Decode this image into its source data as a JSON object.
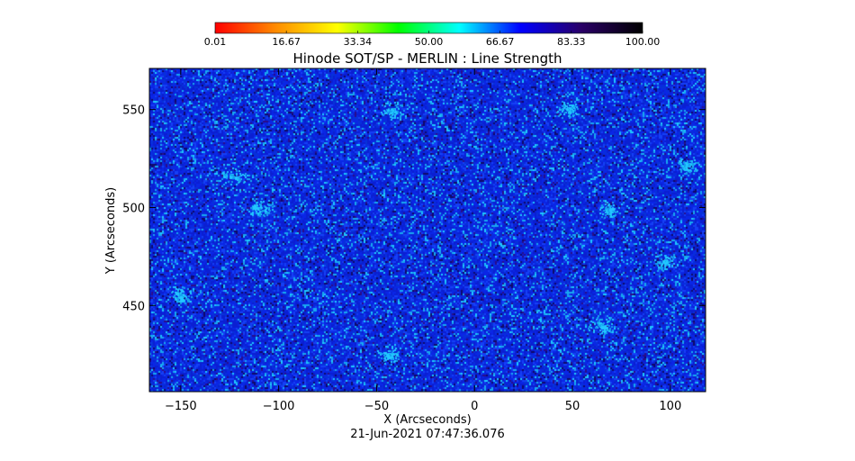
{
  "chart_data": {
    "type": "heatmap",
    "title": "Hinode SOT/SP - MERLIN : Line Strength",
    "subtitle": "21-Jun-2021 07:47:36.076",
    "xlabel": "X (Arcseconds)",
    "ylabel": "Y (Arcseconds)",
    "xlim": [
      -166,
      118
    ],
    "ylim": [
      406,
      571
    ],
    "x_ticks": [
      -150,
      -100,
      -50,
      0,
      50,
      100
    ],
    "x_tick_labels": [
      "−150",
      "−100",
      "−50",
      "0",
      "50",
      "100"
    ],
    "y_ticks": [
      450,
      500,
      550
    ],
    "y_tick_labels": [
      "450",
      "500",
      "550"
    ],
    "colorbar": {
      "min": 0.01,
      "max": 100.0,
      "tick_values": [
        0.01,
        16.67,
        33.34,
        50.0,
        66.67,
        83.33,
        100.0
      ],
      "tick_labels": [
        "0.01",
        "16.67",
        "33.34",
        "50.00",
        "66.67",
        "83.33",
        "100.00"
      ],
      "stops": [
        "#ff0000",
        "#ff8c00",
        "#ffff00",
        "#00ff00",
        "#00ffff",
        "#0000ff",
        "#2a0066",
        "#000000"
      ]
    },
    "map": {
      "dominant_value": 80,
      "palette": [
        "#0b1fd2",
        "#0a26e6",
        "#1540f5",
        "#0732d8",
        "#18a8f0",
        "#1fc8ff",
        "#0e0a6a",
        "#2a0c8a"
      ],
      "palette_weights": [
        0.3,
        0.22,
        0.14,
        0.12,
        0.08,
        0.04,
        0.06,
        0.04
      ],
      "bright_patches": [
        {
          "x": -123,
          "y": 516
        },
        {
          "x": -110,
          "y": 500
        },
        {
          "x": -42,
          "y": 550
        },
        {
          "x": -44,
          "y": 425
        },
        {
          "x": 48,
          "y": 550
        },
        {
          "x": 68,
          "y": 499
        },
        {
          "x": 64,
          "y": 440
        },
        {
          "x": 97,
          "y": 472
        },
        {
          "x": 108,
          "y": 522
        },
        {
          "x": -150,
          "y": 455
        }
      ]
    }
  }
}
